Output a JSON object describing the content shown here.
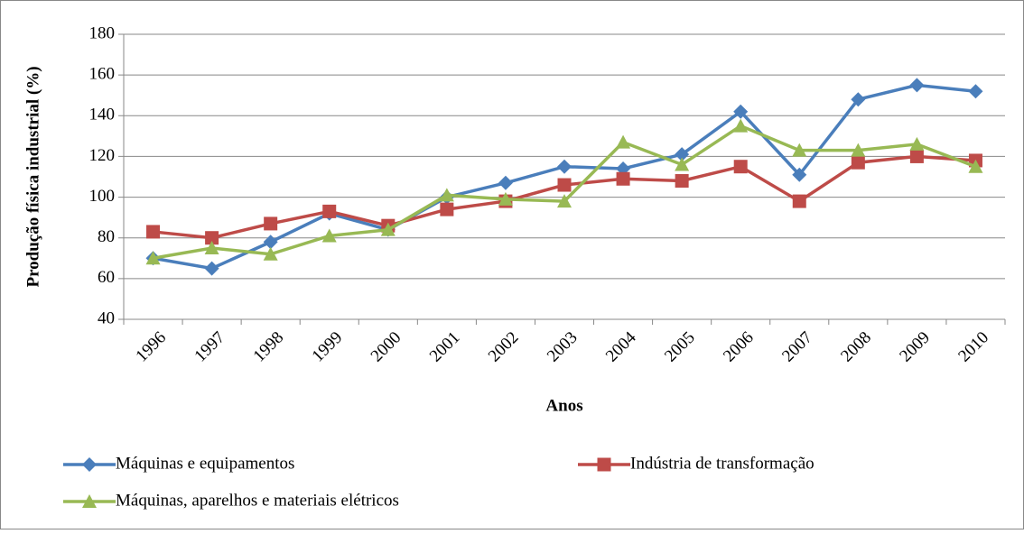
{
  "chart_data": {
    "type": "line",
    "y_label": "Produção física industrial (%)",
    "x_label": "Anos",
    "categories": [
      "1996",
      "1997",
      "1998",
      "1999",
      "2000",
      "2001",
      "2002",
      "2003",
      "2004",
      "2005",
      "2006",
      "2007",
      "2008",
      "2009",
      "2010"
    ],
    "series": [
      {
        "name": "Máquinas e equipamentos",
        "color": "#4a7ebb",
        "marker": "diamond",
        "values": [
          70,
          65,
          78,
          92,
          84,
          100,
          107,
          115,
          114,
          121,
          142,
          111,
          148,
          155,
          152
        ]
      },
      {
        "name": "Indústria de transformação",
        "color": "#be4b48",
        "marker": "square",
        "values": [
          83,
          80,
          87,
          93,
          86,
          94,
          98,
          106,
          109,
          108,
          115,
          98,
          117,
          120,
          118
        ]
      },
      {
        "name": "Máquinas, aparelhos e materiais elétricos",
        "color": "#98b954",
        "marker": "triangle",
        "values": [
          70,
          75,
          72,
          81,
          84,
          101,
          99,
          98,
          127,
          116,
          135,
          123,
          123,
          126,
          115
        ]
      }
    ],
    "ylim": [
      40,
      180
    ],
    "yticks": [
      40,
      60,
      80,
      100,
      120,
      140,
      160,
      180
    ],
    "grid": true
  }
}
